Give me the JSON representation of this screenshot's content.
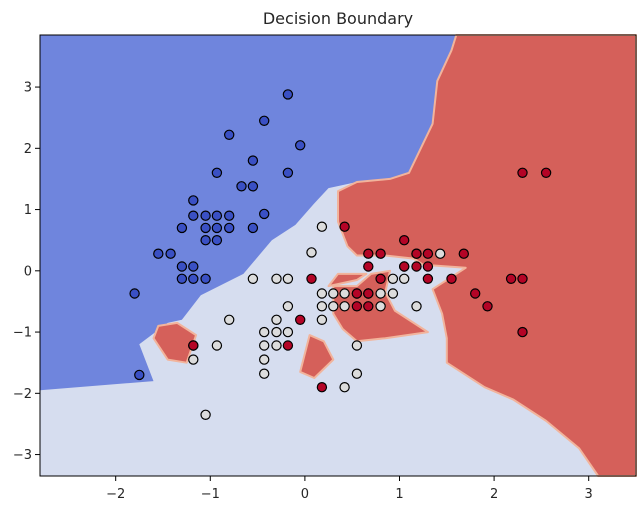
{
  "chart_data": {
    "type": "scatter",
    "title": "Decision Boundary",
    "xlabel": "",
    "ylabel": "",
    "xlim": [
      -2.8,
      3.5
    ],
    "ylim": [
      -3.35,
      3.85
    ],
    "xticks": [
      "−2",
      "−1",
      "0",
      "1",
      "2",
      "3"
    ],
    "xtick_values": [
      -2,
      -1,
      0,
      1,
      2,
      3
    ],
    "yticks": [
      "−3",
      "−2",
      "−1",
      "0",
      "1",
      "2",
      "3"
    ],
    "ytick_values": [
      -3,
      -2,
      -1,
      0,
      1,
      2,
      3
    ],
    "grid": false,
    "colors": {
      "region_class_0": "#6f85dd",
      "region_class_1": "#d6ddef",
      "region_class_2": "#d5605a",
      "point_class_0": "#3a50c4",
      "point_class_1": "#dcdcdc",
      "point_class_2": "#b40426",
      "point_edge": "#000000"
    },
    "regions": [
      {
        "class": 0,
        "polygon": [
          [
            -2.8,
            3.85
          ],
          [
            -2.8,
            -1.95
          ],
          [
            -1.6,
            -1.8
          ],
          [
            -1.75,
            -1.2
          ],
          [
            -1.45,
            -0.85
          ],
          [
            -1.3,
            -0.8
          ],
          [
            -1.1,
            -0.4
          ],
          [
            -0.65,
            -0.05
          ],
          [
            -0.35,
            0.5
          ],
          [
            -0.1,
            0.75
          ],
          [
            0.1,
            1.1
          ],
          [
            0.25,
            1.35
          ],
          [
            0.55,
            1.45
          ],
          [
            0.9,
            1.5
          ],
          [
            1.1,
            1.6
          ],
          [
            1.35,
            2.4
          ],
          [
            1.4,
            3.1
          ],
          [
            1.55,
            3.6
          ],
          [
            1.6,
            3.85
          ]
        ]
      },
      {
        "class": 2,
        "polygon": [
          [
            1.6,
            3.85
          ],
          [
            1.55,
            3.6
          ],
          [
            1.4,
            3.1
          ],
          [
            1.35,
            2.4
          ],
          [
            1.1,
            1.6
          ],
          [
            0.9,
            1.5
          ],
          [
            0.55,
            1.45
          ],
          [
            0.35,
            1.3
          ],
          [
            0.35,
            0.8
          ],
          [
            0.45,
            0.4
          ],
          [
            0.55,
            0.25
          ],
          [
            0.85,
            0.25
          ],
          [
            1.15,
            0.2
          ],
          [
            1.25,
            0.1
          ],
          [
            1.7,
            0.05
          ],
          [
            1.35,
            -0.3
          ],
          [
            1.45,
            -0.7
          ],
          [
            1.5,
            -1.1
          ],
          [
            1.5,
            -1.5
          ],
          [
            1.9,
            -1.9
          ],
          [
            2.2,
            -2.1
          ],
          [
            2.55,
            -2.45
          ],
          [
            2.9,
            -2.9
          ],
          [
            3.1,
            -3.35
          ],
          [
            3.5,
            -3.35
          ],
          [
            3.5,
            3.85
          ]
        ]
      },
      {
        "class": 2,
        "polygon": [
          [
            0.3,
            -0.25
          ],
          [
            0.55,
            -0.25
          ],
          [
            0.7,
            -0.05
          ],
          [
            0.9,
            0.0
          ],
          [
            0.85,
            -0.35
          ],
          [
            0.95,
            -0.65
          ],
          [
            1.3,
            -1.0
          ],
          [
            0.85,
            -1.1
          ],
          [
            0.55,
            -1.15
          ],
          [
            0.4,
            -0.95
          ],
          [
            0.3,
            -0.7
          ]
        ]
      },
      {
        "class": 2,
        "polygon": [
          [
            0.25,
            -0.25
          ],
          [
            0.55,
            -0.15
          ],
          [
            0.65,
            -0.05
          ],
          [
            0.35,
            -0.05
          ]
        ]
      },
      {
        "class": 2,
        "polygon": [
          [
            0.05,
            -1.05
          ],
          [
            0.2,
            -1.15
          ],
          [
            0.3,
            -1.45
          ],
          [
            0.1,
            -1.75
          ],
          [
            -0.05,
            -1.65
          ]
        ]
      },
      {
        "class": 2,
        "polygon": [
          [
            -1.6,
            -1.1
          ],
          [
            -1.55,
            -0.9
          ],
          [
            -1.35,
            -0.85
          ],
          [
            -1.15,
            -1.05
          ],
          [
            -1.25,
            -1.5
          ],
          [
            -1.45,
            -1.45
          ]
        ]
      }
    ],
    "series": [
      {
        "class": 0,
        "points": [
          [
            -1.75,
            -1.7
          ],
          [
            -1.8,
            -0.37
          ],
          [
            -1.55,
            0.28
          ],
          [
            -1.42,
            0.28
          ],
          [
            -1.3,
            0.07
          ],
          [
            -1.3,
            -0.13
          ],
          [
            -1.18,
            0.07
          ],
          [
            -1.18,
            -0.13
          ],
          [
            -1.05,
            -0.13
          ],
          [
            -1.3,
            0.7
          ],
          [
            -1.18,
            1.15
          ],
          [
            -1.18,
            0.9
          ],
          [
            -1.05,
            0.9
          ],
          [
            -1.05,
            0.7
          ],
          [
            -1.05,
            0.5
          ],
          [
            -0.93,
            0.9
          ],
          [
            -0.93,
            0.7
          ],
          [
            -0.93,
            0.5
          ],
          [
            -0.8,
            0.9
          ],
          [
            -0.8,
            0.7
          ],
          [
            -0.93,
            1.6
          ],
          [
            -0.8,
            2.22
          ],
          [
            -0.55,
            1.38
          ],
          [
            -0.55,
            1.8
          ],
          [
            -0.67,
            1.38
          ],
          [
            -0.55,
            0.7
          ],
          [
            -0.43,
            0.93
          ],
          [
            -0.43,
            2.45
          ],
          [
            -0.18,
            2.88
          ],
          [
            -0.18,
            1.6
          ],
          [
            -0.05,
            2.05
          ]
        ]
      },
      {
        "class": 1,
        "points": [
          [
            -1.05,
            -2.35
          ],
          [
            -1.18,
            -1.45
          ],
          [
            -1.18,
            -1.22
          ],
          [
            -0.93,
            -1.22
          ],
          [
            -0.8,
            -0.8
          ],
          [
            -0.55,
            -0.13
          ],
          [
            -0.3,
            -0.13
          ],
          [
            -0.43,
            -1.0
          ],
          [
            -0.43,
            -1.22
          ],
          [
            -0.43,
            -1.45
          ],
          [
            -0.43,
            -1.68
          ],
          [
            -0.3,
            -0.8
          ],
          [
            -0.3,
            -1.0
          ],
          [
            -0.3,
            -1.22
          ],
          [
            -0.18,
            -0.13
          ],
          [
            -0.18,
            -0.58
          ],
          [
            -0.18,
            -1.0
          ],
          [
            0.07,
            0.3
          ],
          [
            0.18,
            0.72
          ],
          [
            0.18,
            -0.37
          ],
          [
            0.18,
            -0.58
          ],
          [
            0.18,
            -0.8
          ],
          [
            0.3,
            -0.37
          ],
          [
            0.3,
            -0.58
          ],
          [
            0.42,
            -0.37
          ],
          [
            0.42,
            -0.58
          ],
          [
            0.42,
            -1.9
          ],
          [
            0.55,
            -1.22
          ],
          [
            0.55,
            -1.68
          ],
          [
            0.55,
            -0.37
          ],
          [
            0.67,
            -0.37
          ],
          [
            0.8,
            -0.58
          ],
          [
            0.8,
            -0.37
          ],
          [
            0.93,
            -0.37
          ],
          [
            0.93,
            -0.13
          ],
          [
            1.05,
            -0.13
          ],
          [
            1.05,
            0.07
          ],
          [
            1.18,
            -0.58
          ],
          [
            1.18,
            0.28
          ],
          [
            1.43,
            0.28
          ]
        ]
      },
      {
        "class": 2,
        "points": [
          [
            -1.18,
            -1.22
          ],
          [
            -0.18,
            -1.22
          ],
          [
            -0.05,
            -0.8
          ],
          [
            0.07,
            -0.13
          ],
          [
            0.18,
            -1.9
          ],
          [
            0.42,
            0.72
          ],
          [
            0.55,
            -0.37
          ],
          [
            0.55,
            -0.58
          ],
          [
            0.67,
            -0.58
          ],
          [
            0.67,
            -0.37
          ],
          [
            0.67,
            0.07
          ],
          [
            0.67,
            0.28
          ],
          [
            0.8,
            0.28
          ],
          [
            0.8,
            -0.13
          ],
          [
            1.05,
            0.5
          ],
          [
            1.05,
            0.07
          ],
          [
            1.18,
            0.07
          ],
          [
            1.18,
            0.28
          ],
          [
            1.3,
            0.28
          ],
          [
            1.3,
            0.07
          ],
          [
            1.3,
            -0.13
          ],
          [
            1.55,
            -0.13
          ],
          [
            1.68,
            0.28
          ],
          [
            1.8,
            -0.37
          ],
          [
            1.93,
            -0.58
          ],
          [
            2.18,
            -0.13
          ],
          [
            2.3,
            -0.13
          ],
          [
            2.3,
            -1.0
          ],
          [
            2.3,
            1.6
          ],
          [
            2.55,
            1.6
          ]
        ]
      }
    ]
  }
}
